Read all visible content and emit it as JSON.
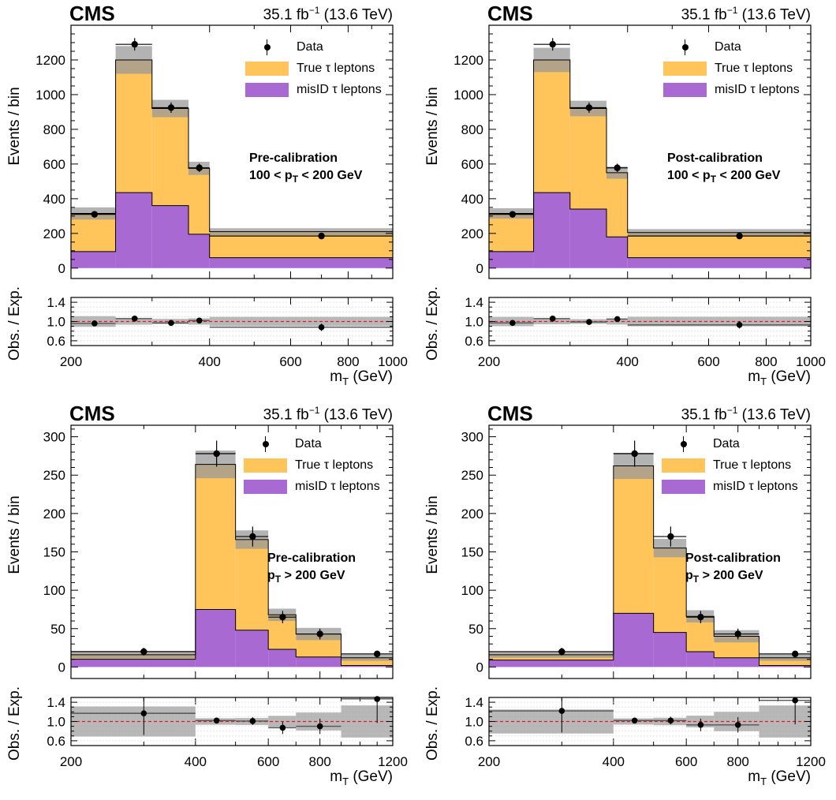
{
  "colors": {
    "true_tau": "#ffc45a",
    "misid_tau": "#a86ad2",
    "unc_band": "#9a9a9a",
    "ratio_line": "#e41a1c"
  },
  "legend": {
    "data": "Data",
    "true": "True τ leptons",
    "misid": "misID τ leptons"
  },
  "experiment": "CMS",
  "lumi_value": "35.1 fb",
  "lumi_exp": "−1",
  "lumi_energy": " (13.6 TeV)",
  "ylabel_main": "Events / bin",
  "ylabel_ratio": "Obs. / Exp.",
  "xlabel_base": "m",
  "xlabel_sub": "T",
  "xlabel_unit": " (GeV)",
  "pt_low_text": "100 < p",
  "pt_low_sub": "T",
  "pt_low_end": " < 200 GeV",
  "pt_high_text": "p",
  "pt_high_sub": "T",
  "pt_high_end": " > 200 GeV",
  "chart_data": [
    {
      "type": "bar",
      "stacked": true,
      "title": "Pre-calibration",
      "subtitle": "100 < pT < 200 GeV",
      "xlabel": "mT (GeV)",
      "ylabel": "Events / bin",
      "ratio_ylabel": "Obs. / Exp.",
      "x_scale": "log",
      "xlim": [
        200,
        1000
      ],
      "ylim": [
        -60,
        1400
      ],
      "x_ticks": [
        200,
        400,
        600,
        800,
        1000
      ],
      "y_ticks": [
        0,
        200,
        400,
        600,
        800,
        1000,
        1200
      ],
      "ratio_ylim": [
        0.5,
        1.5
      ],
      "ratio_ticks": [
        0.6,
        1.0,
        1.4
      ],
      "bin_edges": [
        200,
        250,
        300,
        360,
        400,
        1000
      ],
      "series": [
        {
          "name": "misID τ leptons",
          "values": [
            95,
            435,
            360,
            195,
            60
          ]
        },
        {
          "name": "True τ leptons",
          "values": [
            220,
            765,
            560,
            380,
            150
          ]
        }
      ],
      "total_unc": [
        35,
        80,
        50,
        38,
        20
      ],
      "data": {
        "x": [
          225,
          275,
          330,
          380,
          700
        ],
        "y": [
          310,
          1290,
          925,
          578,
          185
        ],
        "yerr": [
          18,
          36,
          30,
          24,
          14
        ]
      },
      "ratio": {
        "y": [
          0.96,
          1.06,
          0.97,
          1.02,
          0.88
        ]
      },
      "legend_position": "top-right",
      "grid": false
    },
    {
      "type": "bar",
      "stacked": true,
      "title": "Post-calibration",
      "subtitle": "100 < pT < 200 GeV",
      "xlabel": "mT (GeV)",
      "ylabel": "Events / bin",
      "ratio_ylabel": "Obs. / Exp.",
      "x_scale": "log",
      "xlim": [
        200,
        1000
      ],
      "ylim": [
        -60,
        1400
      ],
      "x_ticks": [
        200,
        400,
        600,
        800,
        1000
      ],
      "y_ticks": [
        0,
        200,
        400,
        600,
        800,
        1000,
        1200
      ],
      "ratio_ylim": [
        0.5,
        1.5
      ],
      "ratio_ticks": [
        0.6,
        1.0,
        1.4
      ],
      "bin_edges": [
        200,
        250,
        300,
        360,
        400,
        1000
      ],
      "series": [
        {
          "name": "misID τ leptons",
          "values": [
            95,
            435,
            340,
            180,
            60
          ]
        },
        {
          "name": "True τ leptons",
          "values": [
            220,
            765,
            580,
            370,
            145
          ]
        }
      ],
      "total_unc": [
        30,
        70,
        45,
        35,
        20
      ],
      "data": {
        "x": [
          225,
          275,
          330,
          380,
          700
        ],
        "y": [
          310,
          1290,
          925,
          578,
          185
        ],
        "yerr": [
          18,
          36,
          30,
          24,
          14
        ]
      },
      "ratio": {
        "y": [
          0.97,
          1.06,
          0.99,
          1.05,
          0.93
        ]
      },
      "legend_position": "top-right",
      "grid": false
    },
    {
      "type": "bar",
      "stacked": true,
      "title": "Pre-calibration",
      "subtitle": "pT > 200 GeV",
      "xlabel": "mT (GeV)",
      "ylabel": "Events / bin",
      "ratio_ylabel": "Obs. / Exp.",
      "x_scale": "log",
      "xlim": [
        200,
        1200
      ],
      "ylim": [
        -15,
        315
      ],
      "x_ticks": [
        200,
        400,
        600,
        800,
        1200
      ],
      "y_ticks": [
        0,
        50,
        100,
        150,
        200,
        250,
        300
      ],
      "ratio_ylim": [
        0.5,
        1.5
      ],
      "ratio_ticks": [
        0.6,
        1.0,
        1.4
      ],
      "bin_edges": [
        200,
        400,
        500,
        600,
        700,
        900,
        1200
      ],
      "series": [
        {
          "name": "misID τ leptons",
          "values": [
            10,
            75,
            48,
            23,
            13,
            2
          ]
        },
        {
          "name": "True τ leptons",
          "values": [
            6,
            189,
            118,
            45,
            30,
            10
          ]
        }
      ],
      "total_unc": [
        5,
        18,
        12,
        8,
        8,
        4
      ],
      "data": {
        "x": [
          300,
          450,
          550,
          650,
          800,
          1100
        ],
        "y": [
          20,
          278,
          170,
          65,
          43,
          17
        ],
        "yerr": [
          5,
          17,
          13,
          8,
          7,
          4
        ]
      },
      "ratio": {
        "y": [
          1.17,
          1.02,
          1.01,
          0.87,
          0.9,
          1.47
        ],
        "yerr": [
          0.45,
          0.06,
          0.08,
          0.13,
          0.16,
          0.5
        ]
      },
      "legend_position": "top-right",
      "grid": false
    },
    {
      "type": "bar",
      "stacked": true,
      "title": "Post-calibration",
      "subtitle": "pT > 200 GeV",
      "xlabel": "mT (GeV)",
      "ylabel": "Events / bin",
      "ratio_ylabel": "Obs. / Exp.",
      "x_scale": "log",
      "xlim": [
        200,
        1200
      ],
      "ylim": [
        -15,
        315
      ],
      "x_ticks": [
        200,
        400,
        600,
        800,
        1200
      ],
      "y_ticks": [
        0,
        50,
        100,
        150,
        200,
        250,
        300
      ],
      "ratio_ylim": [
        0.5,
        1.5
      ],
      "ratio_ticks": [
        0.6,
        1.0,
        1.4
      ],
      "bin_edges": [
        200,
        400,
        500,
        600,
        700,
        900,
        1200
      ],
      "series": [
        {
          "name": "misID τ leptons",
          "values": [
            9,
            70,
            45,
            20,
            12,
            2
          ]
        },
        {
          "name": "True τ leptons",
          "values": [
            7,
            192,
            110,
            46,
            28,
            10
          ]
        }
      ],
      "total_unc": [
        4,
        17,
        12,
        8,
        8,
        4
      ],
      "data": {
        "x": [
          300,
          450,
          550,
          650,
          800,
          1100
        ],
        "y": [
          20,
          278,
          170,
          65,
          43,
          17
        ],
        "yerr": [
          5,
          17,
          13,
          8,
          7,
          4
        ]
      },
      "ratio": {
        "y": [
          1.22,
          1.02,
          1.02,
          0.93,
          0.93,
          1.44
        ],
        "yerr": [
          0.45,
          0.06,
          0.08,
          0.13,
          0.16,
          0.5
        ]
      },
      "legend_position": "top-right",
      "grid": false
    }
  ]
}
